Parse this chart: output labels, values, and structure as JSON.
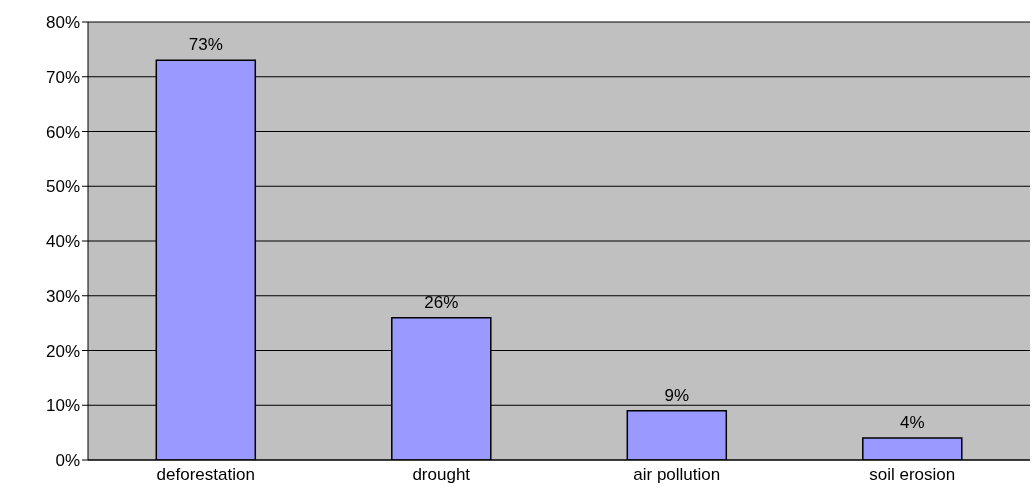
{
  "chart_data": {
    "type": "bar",
    "categories": [
      "deforestation",
      "drought",
      "air pollution",
      "soil erosion"
    ],
    "values": [
      73,
      26,
      9,
      4
    ],
    "value_labels": [
      "73%",
      "26%",
      "9%",
      "4%"
    ],
    "color": "#9999ff",
    "ylim": [
      0,
      80
    ],
    "yticks": [
      {
        "value": 0,
        "label": "0%"
      },
      {
        "value": 10,
        "label": "10%"
      },
      {
        "value": 20,
        "label": "20%"
      },
      {
        "value": 30,
        "label": "30%"
      },
      {
        "value": 40,
        "label": "40%"
      },
      {
        "value": 50,
        "label": "50%"
      },
      {
        "value": 60,
        "label": "60%"
      },
      {
        "value": 70,
        "label": "70%"
      },
      {
        "value": 80,
        "label": "80%"
      }
    ],
    "grid": "y",
    "legend": false
  }
}
